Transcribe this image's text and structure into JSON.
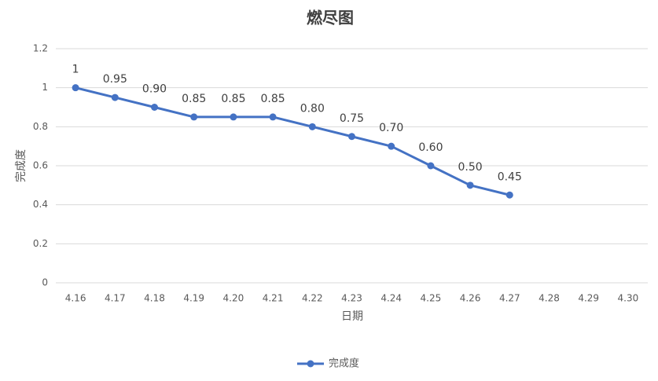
{
  "chart_data": {
    "type": "line",
    "title": "燃尽图",
    "x_label": "日期",
    "y_label": "完成度",
    "categories": [
      "4.16",
      "4.17",
      "4.18",
      "4.19",
      "4.20",
      "4.21",
      "4.22",
      "4.23",
      "4.24",
      "4.25",
      "4.26",
      "4.27",
      "4.28",
      "4.29",
      "4.30"
    ],
    "series": [
      {
        "name": "完成度",
        "color": "#4472c4",
        "values": [
          1,
          0.95,
          0.9,
          0.85,
          0.85,
          0.85,
          0.8,
          0.75,
          0.7,
          0.6,
          0.5,
          0.45,
          null,
          null,
          null
        ],
        "value_labels": [
          "1",
          "0.95",
          "0.90",
          "0.85",
          "0.85",
          "0.85",
          "0.80",
          "0.75",
          "0.70",
          "0.60",
          "0.50",
          "0.45",
          null,
          null,
          null
        ]
      }
    ],
    "ylim": [
      0,
      1.2
    ],
    "yticks": [
      0,
      0.2,
      0.4,
      0.6,
      0.8,
      1,
      1.2
    ],
    "grid": true,
    "legend": "bottom"
  }
}
